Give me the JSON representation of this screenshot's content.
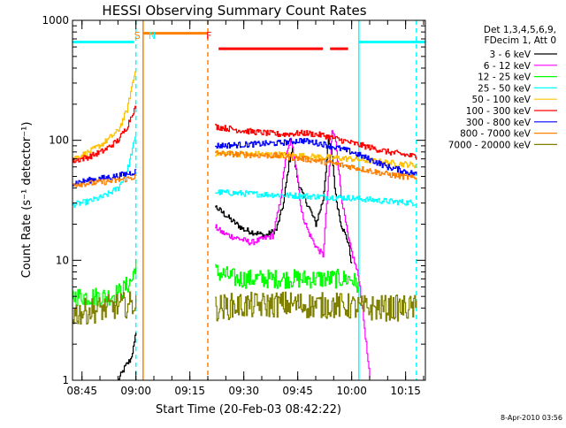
{
  "chart_data": {
    "type": "line",
    "title": "HESSI Observing Summary Count Rates",
    "xlabel": "Start Time (20-Feb-03 08:42:22)",
    "ylabel": "Count Rate (s⁻¹ detector⁻¹)",
    "xlim": [
      "08:42:22",
      "10:20:30"
    ],
    "ylim": [
      1,
      1000
    ],
    "yscale": "log",
    "x_ticks": [
      "08:45",
      "09:00",
      "09:15",
      "09:30",
      "09:45",
      "10:00",
      "10:15"
    ],
    "y_ticks": [
      "1",
      "10",
      "100",
      "1000"
    ],
    "grid": false,
    "legend_placement": "outside-right",
    "legend_header": [
      "Det 1,3,4,5,6,9,",
      "FDecim 1, Att 0"
    ],
    "footer_date": "8-Apr-2010 03:56",
    "annotations": [
      {
        "text": "S",
        "x": "09:01:00",
        "color": "#ff8000"
      },
      {
        "text": "N",
        "x": "09:03:00",
        "color": "#00ffff"
      },
      {
        "text": "F",
        "x": "09:21:00",
        "color": "#ff0000"
      }
    ],
    "state_bars": [
      {
        "color": "#00ffff",
        "level": 660,
        "segments": [
          [
            "08:42:22",
            "08:59:30"
          ],
          [
            "10:02:00",
            "10:20:30"
          ]
        ]
      },
      {
        "color": "#ff8000",
        "level": 780,
        "segments": [
          [
            "09:02:00",
            "09:20:00"
          ]
        ]
      },
      {
        "color": "#ff0000",
        "level": 580,
        "segments": [
          [
            "09:23:00",
            "09:52:00"
          ],
          [
            "09:54:00",
            "09:59:00"
          ]
        ]
      }
    ],
    "marker_lines": [
      {
        "x": "09:00:00",
        "color": "#00ffff",
        "style": "dashed"
      },
      {
        "x": "09:02:00",
        "color": "#ff8000",
        "style": "solid"
      },
      {
        "x": "09:20:00",
        "color": "#ff8000",
        "style": "dashed"
      },
      {
        "x": "10:02:00",
        "color": "#00ffff",
        "style": "solid"
      },
      {
        "x": "10:18:00",
        "color": "#00ffff",
        "style": "dashed"
      }
    ],
    "series": [
      {
        "name": "3 - 6 keV",
        "color": "#000000",
        "x": [
          "08:55:00",
          "08:57:00",
          "08:58:30",
          "08:59:30",
          "09:00:00",
          "09:22:00",
          "09:24:00",
          "09:27:00",
          "09:30:00",
          "09:33:00",
          "09:36:00",
          "09:39:00",
          "09:41:00",
          "09:42:30",
          "09:43:30",
          "09:45:00",
          "09:46:30",
          "09:48:00",
          "09:50:00",
          "09:52:00",
          "09:53:30",
          "09:54:30",
          "09:55:30",
          "09:57:00",
          "09:59:00",
          "10:00:00"
        ],
        "y": [
          1,
          1.3,
          1.5,
          2,
          2.6,
          28,
          25,
          21,
          18,
          17,
          16,
          18,
          30,
          65,
          85,
          45,
          34,
          28,
          20,
          32,
          100,
          75,
          34,
          20,
          14,
          9
        ]
      },
      {
        "name": "6 - 12 keV",
        "color": "#ff00ff",
        "x": [
          "09:22:00",
          "09:24:00",
          "09:26:00",
          "09:29:00",
          "09:32:00",
          "09:35:00",
          "09:38:00",
          "09:40:00",
          "09:41:30",
          "09:43:00",
          "09:44:30",
          "09:46:00",
          "09:48:00",
          "09:50:00",
          "09:52:00",
          "09:53:00",
          "09:54:30",
          "09:55:30",
          "09:57:00",
          "09:59:00",
          "10:02:00",
          "10:04:00",
          "10:05:00"
        ],
        "y": [
          19,
          17,
          16,
          15,
          14,
          15,
          16,
          30,
          70,
          100,
          60,
          25,
          17,
          13,
          11,
          30,
          120,
          100,
          35,
          15,
          7,
          2,
          1
        ]
      },
      {
        "name": "12 - 25 keV",
        "color": "#00ff00",
        "x": [
          "08:42:22",
          "08:47:00",
          "08:52:00",
          "08:56:00",
          "08:59:00",
          "09:00:00",
          "09:22:00",
          "09:28:00",
          "09:34:00",
          "09:40:00",
          "09:44:00",
          "09:48:00",
          "09:52:00",
          "09:56:00",
          "10:00:00",
          "10:02:00"
        ],
        "y": [
          5,
          5,
          5,
          5.5,
          7,
          10,
          8,
          7,
          7,
          7,
          7,
          7,
          7,
          7,
          7,
          6
        ]
      },
      {
        "name": "25 - 50 keV",
        "color": "#00ffff",
        "x": [
          "08:42:22",
          "08:47:00",
          "08:51:00",
          "08:55:00",
          "08:57:30",
          "08:59:00",
          "09:00:00",
          "09:22:00",
          "09:30:00",
          "09:40:00",
          "09:50:00",
          "10:00:00",
          "10:10:00",
          "10:18:00"
        ],
        "y": [
          29,
          31,
          34,
          40,
          55,
          85,
          110,
          37,
          36,
          35,
          34,
          33,
          31,
          30
        ]
      },
      {
        "name": "50 - 100 keV",
        "color": "#ffc000",
        "x": [
          "08:42:22",
          "08:47:00",
          "08:51:00",
          "08:55:00",
          "08:57:30",
          "08:59:00",
          "09:00:00",
          "09:22:00",
          "09:30:00",
          "09:40:00",
          "09:50:00",
          "10:00:00",
          "10:10:00",
          "10:18:00"
        ],
        "y": [
          70,
          80,
          95,
          120,
          180,
          300,
          400,
          78,
          77,
          76,
          73,
          70,
          65,
          62
        ]
      },
      {
        "name": "100 - 300 keV",
        "color": "#ff0000",
        "x": [
          "08:42:22",
          "08:47:00",
          "08:51:00",
          "08:55:00",
          "08:57:30",
          "08:59:00",
          "09:00:00",
          "09:22:00",
          "09:30:00",
          "09:40:00",
          "09:47:00",
          "09:52:00",
          "10:00:00",
          "10:10:00",
          "10:18:00"
        ],
        "y": [
          67,
          73,
          82,
          100,
          130,
          170,
          190,
          130,
          120,
          112,
          115,
          110,
          95,
          80,
          73
        ]
      },
      {
        "name": "300 - 800 keV",
        "color": "#0000ff",
        "x": [
          "08:42:22",
          "08:48:00",
          "08:54:00",
          "08:58:00",
          "09:00:00",
          "09:22:00",
          "09:30:00",
          "09:40:00",
          "09:46:00",
          "09:52:00",
          "10:00:00",
          "10:10:00",
          "10:18:00"
        ],
        "y": [
          44,
          47,
          50,
          53,
          55,
          90,
          92,
          95,
          100,
          93,
          80,
          60,
          52
        ]
      },
      {
        "name": "800 - 7000 keV",
        "color": "#ff8000",
        "x": [
          "08:42:22",
          "08:48:00",
          "08:54:00",
          "08:58:00",
          "09:00:00",
          "09:22:00",
          "09:30:00",
          "09:40:00",
          "09:50:00",
          "10:00:00",
          "10:10:00",
          "10:18:00"
        ],
        "y": [
          43,
          44,
          46,
          48,
          50,
          78,
          76,
          74,
          68,
          60,
          52,
          48
        ]
      },
      {
        "name": "7000 - 20000 keV",
        "color": "#808000",
        "x": [
          "08:42:22",
          "08:47:00",
          "08:52:00",
          "08:56:00",
          "08:59:00",
          "09:00:00",
          "09:22:00",
          "09:28:00",
          "09:34:00",
          "09:40:00",
          "09:44:00",
          "09:48:00",
          "09:52:00",
          "09:56:00",
          "10:00:00",
          "10:02:00",
          "10:10:00",
          "10:18:00"
        ],
        "y": [
          3.6,
          3.8,
          4,
          4.2,
          4.3,
          4.5,
          4,
          4.2,
          4.2,
          4.3,
          4.3,
          4.2,
          4.2,
          4.2,
          4.1,
          4,
          4,
          4
        ]
      }
    ]
  }
}
